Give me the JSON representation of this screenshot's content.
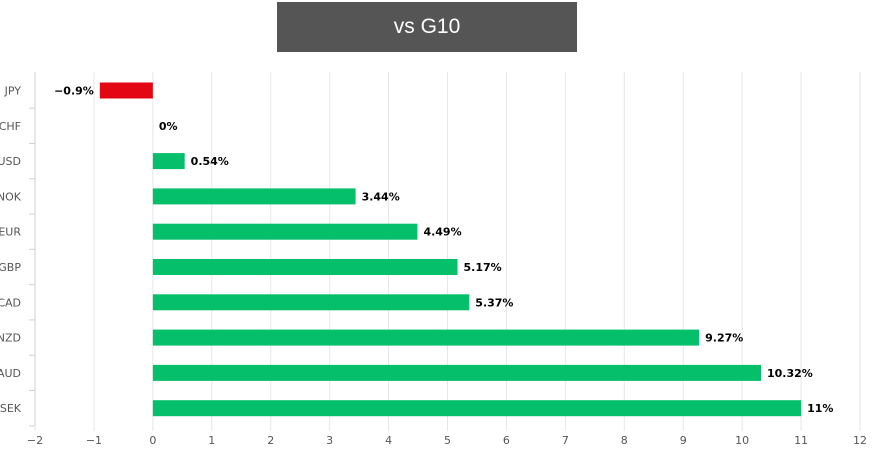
{
  "chart_data": {
    "type": "bar",
    "orientation": "horizontal",
    "title": "vs G10",
    "categories": [
      "JPY",
      "CHF",
      "USD",
      "NOK",
      "EUR",
      "GBP",
      "CAD",
      "NZD",
      "AUD",
      "SEK"
    ],
    "values": [
      -0.9,
      0,
      0.54,
      3.44,
      4.49,
      5.17,
      5.37,
      9.27,
      10.32,
      11
    ],
    "value_labels": [
      "−0.9%",
      "0%",
      "0.54%",
      "3.44%",
      "4.49%",
      "5.17%",
      "5.37%",
      "9.27%",
      "10.32%",
      "11%"
    ],
    "xlim": [
      -2,
      12
    ],
    "xticks": [
      -2,
      -1,
      0,
      1,
      2,
      3,
      4,
      5,
      6,
      7,
      8,
      9,
      10,
      11,
      12
    ],
    "xtick_labels": [
      "−2",
      "−1",
      "0",
      "1",
      "2",
      "3",
      "4",
      "5",
      "6",
      "7",
      "8",
      "9",
      "10",
      "11",
      "12"
    ],
    "grid": true,
    "colors": {
      "positive": "#06bf6b",
      "negative": "#e30613",
      "title_bg": "#555555"
    }
  }
}
